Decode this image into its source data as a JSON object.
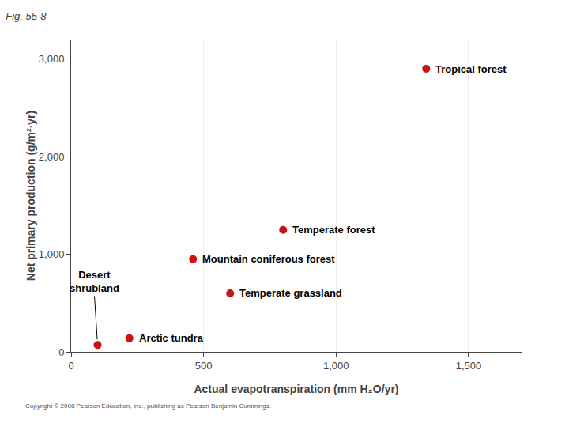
{
  "chart_data": {
    "type": "scatter",
    "title": "Fig. 55-8",
    "x_label": "Actual evapotranspiration (mm H₂O/yr)",
    "y_label": "Net primary production (g/m²·yr)",
    "x": [
      1340,
      800,
      460,
      600,
      220,
      100
    ],
    "values": [
      2900,
      1250,
      950,
      600,
      140,
      70
    ],
    "labels": [
      "Tropical forest",
      "Temperate forest",
      "Mountain coniferous forest",
      "Temperate grassland",
      "Arctic tundra",
      "Desert\nshrubland"
    ],
    "color": "#cc1111",
    "marker": "circle",
    "xlim": [
      0,
      1700
    ],
    "ylim": [
      0,
      3200
    ],
    "xticks": [
      0,
      500,
      {
        "value": 1000,
        "label": "1,000"
      },
      {
        "value": 1500,
        "label": "1,500"
      }
    ],
    "yticks": [
      0,
      {
        "value": 1000,
        "label": "1,000"
      },
      {
        "value": 2000,
        "label": "2,000"
      },
      {
        "value": 3000,
        "label": "3,000"
      }
    ],
    "grid": "x",
    "annotations": [
      "Copyright © 2008 Pearson Education, Inc., publishing as Pearson Benjamin Cummings."
    ]
  }
}
